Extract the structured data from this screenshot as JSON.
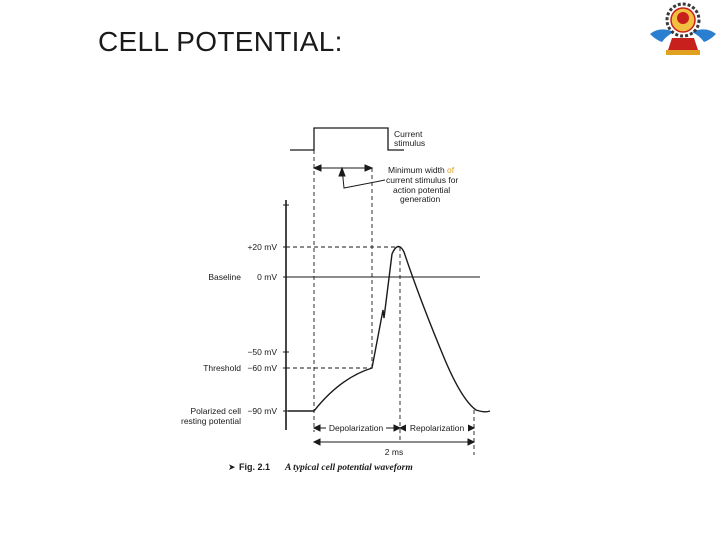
{
  "slide": {
    "title": "CELL POTENTIAL:"
  },
  "logo": {
    "icon": "institution-emblem-icon",
    "colors": {
      "blue": "#2a7fd0",
      "red": "#c8201c",
      "gold": "#e0a020"
    }
  },
  "figure": {
    "stimulus_label_line1": "Current",
    "stimulus_label_line2": "stimulus",
    "min_width_line1_a": "Minimum width ",
    "min_width_line1_b": "of",
    "min_width_line2": "current stimulus for",
    "min_width_line3": "action potential",
    "min_width_line4": "generation",
    "voltage_labels": {
      "plus20": "+20 mV",
      "zero": "0 mV",
      "minus50": "−50 mV",
      "minus60": "−60 mV",
      "minus90": "−90 mV"
    },
    "left_labels": {
      "baseline": "Baseline",
      "threshold": "Threshold",
      "polarized_line1": "Polarized cell",
      "polarized_line2": "resting potential"
    },
    "phase_labels": {
      "depolarization": "Depolarization",
      "repolarization": "Repolarization",
      "duration": "2 ms"
    },
    "caption": {
      "marker": "➤",
      "fig_number": "Fig. 2.1",
      "text": "A typical cell potential waveform"
    },
    "highlight_color": "#e0a020"
  }
}
